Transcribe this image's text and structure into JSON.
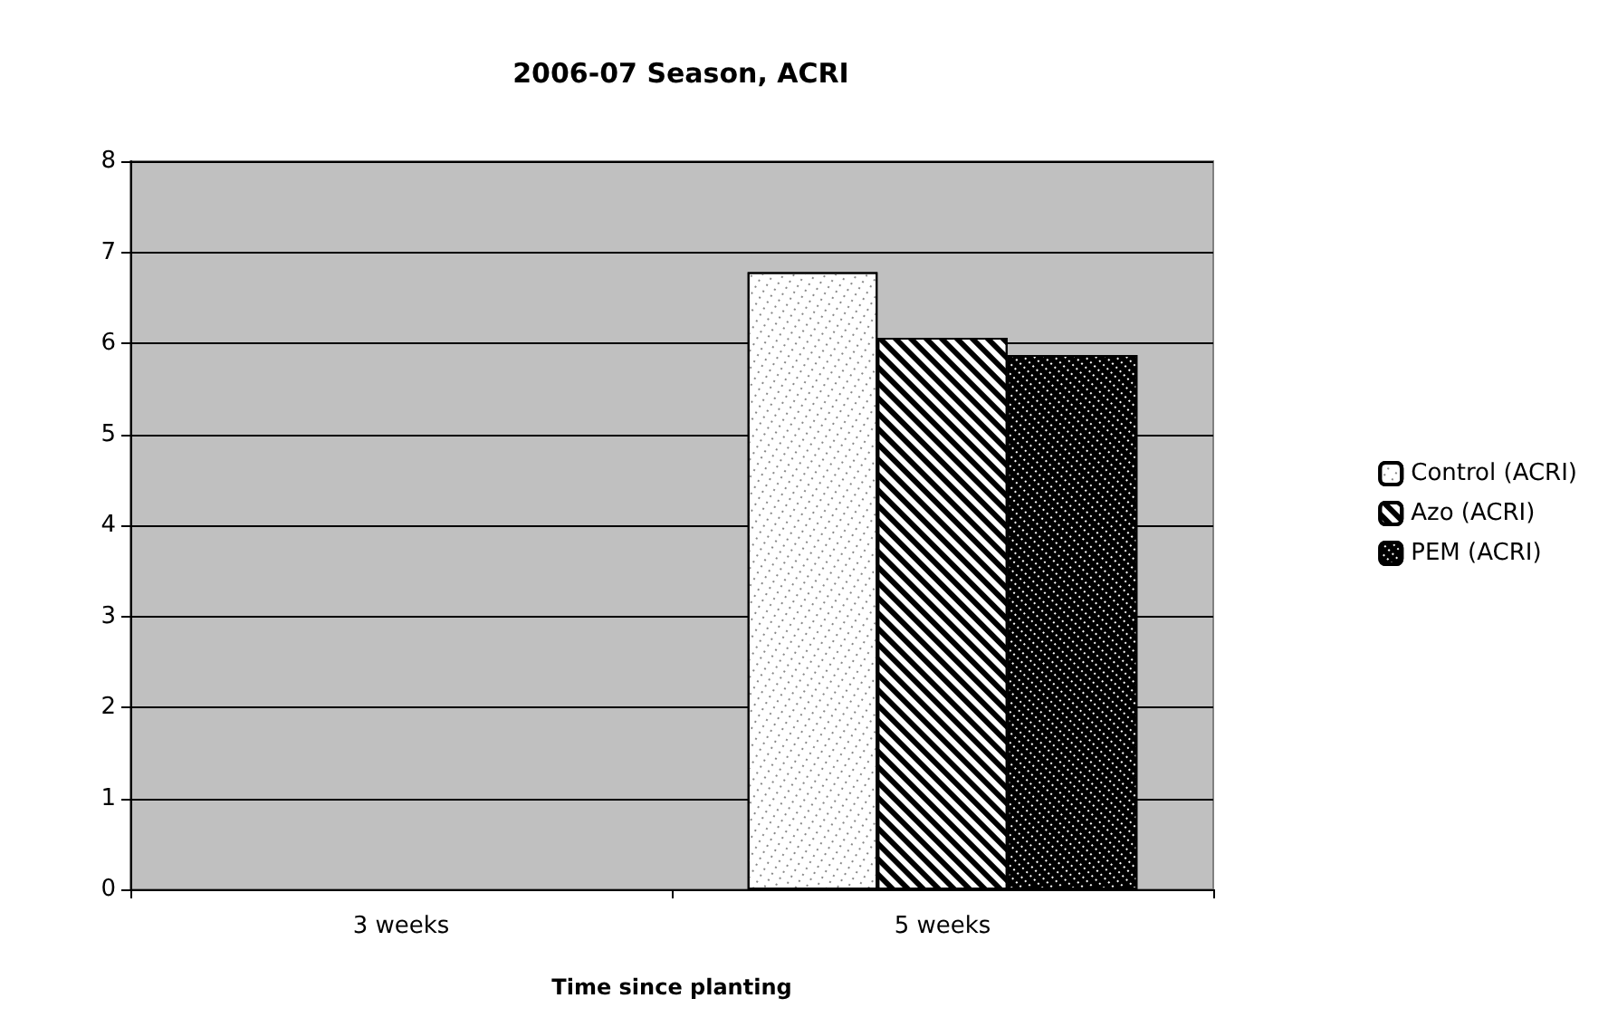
{
  "chart_data": {
    "type": "bar",
    "title": "2006-07 Season, ACRI",
    "xlabel": "Time since planting",
    "categories": [
      "3 weeks",
      "5 weeks"
    ],
    "series": [
      {
        "name": "Control (ACRI)",
        "color": "#ffffff",
        "values": [
          null,
          6.78
        ]
      },
      {
        "name": "Azo (ACRI)",
        "color": "#ffffff",
        "values": [
          null,
          6.06
        ]
      },
      {
        "name": "PEM (ACRI)",
        "color": "#000000",
        "values": [
          null,
          5.87
        ]
      }
    ],
    "ylim": [
      0,
      8
    ],
    "yticks": [
      0,
      1,
      2,
      3,
      4,
      5,
      6,
      7,
      8
    ],
    "grid": "y",
    "legend": "right"
  }
}
